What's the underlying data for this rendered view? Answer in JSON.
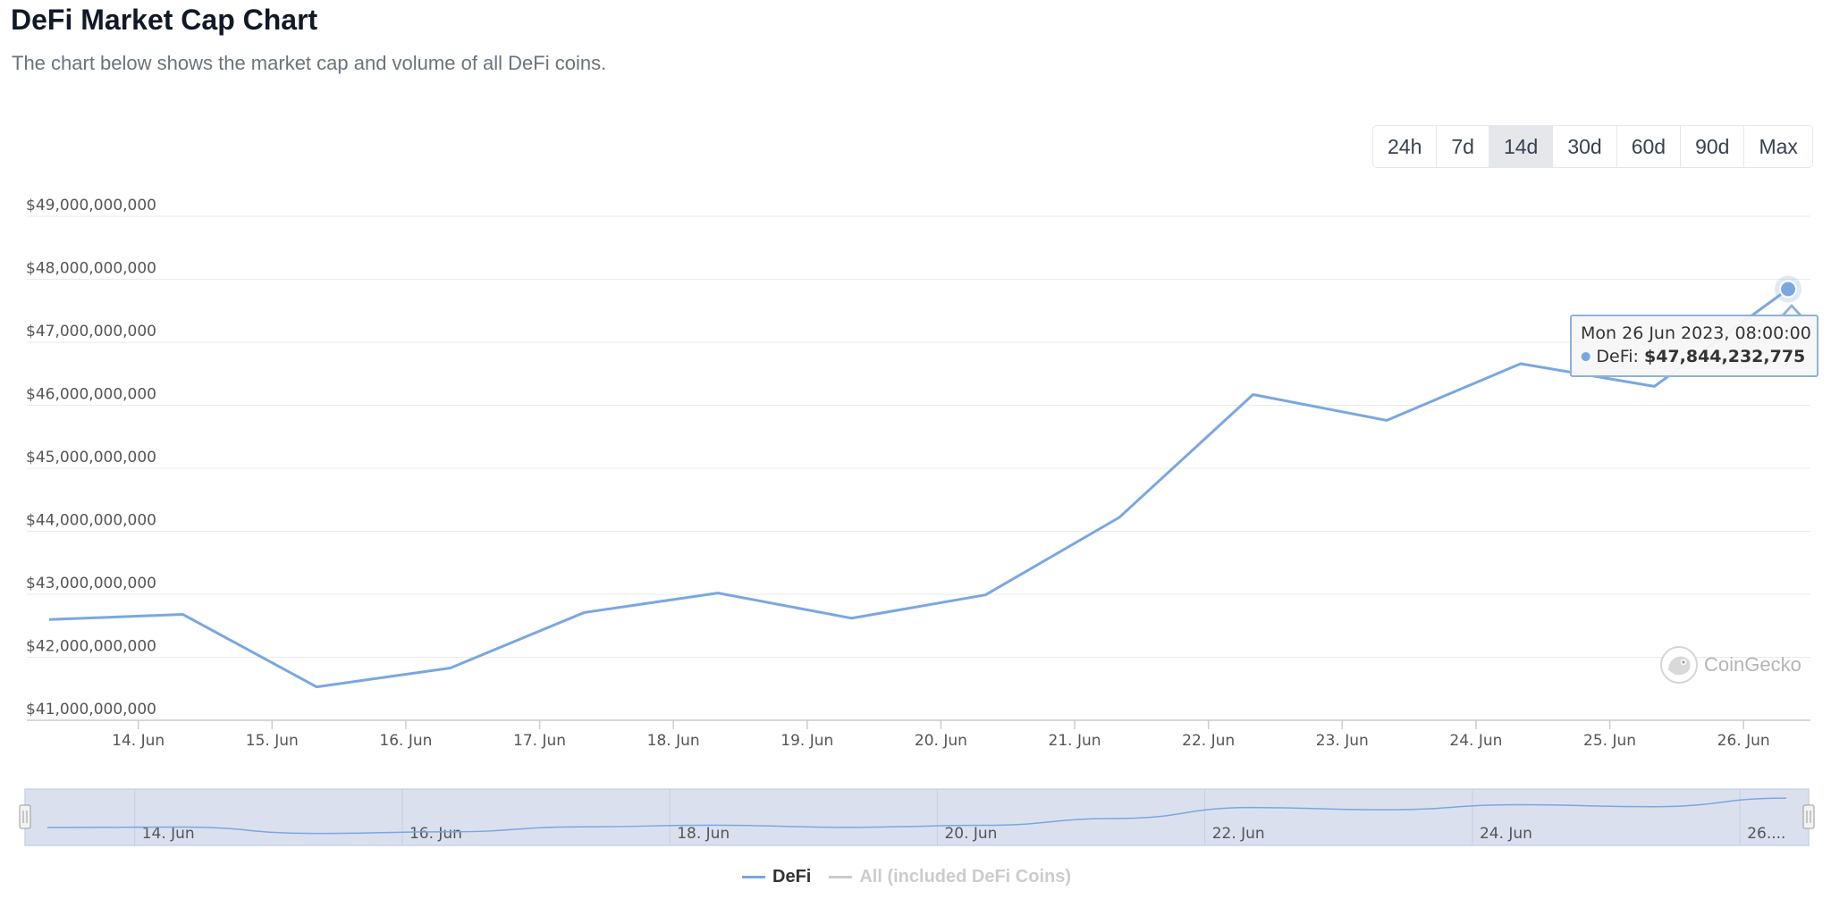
{
  "header": {
    "title": "DeFi Market Cap Chart",
    "subtitle": "The chart below shows the market cap and volume of all DeFi coins."
  },
  "range_selector": {
    "options": [
      "24h",
      "7d",
      "14d",
      "30d",
      "60d",
      "90d",
      "Max"
    ],
    "selected": "14d"
  },
  "tooltip": {
    "date": "Mon 26 Jun 2023, 08:00:00",
    "series_label": "DeFi:",
    "value": "$47,844,232,775"
  },
  "watermark": {
    "text": "CoinGecko"
  },
  "legend": {
    "items": [
      {
        "label": "DeFi",
        "color": "#7aa7e0",
        "visible": true
      },
      {
        "label": "All (included DeFi Coins)",
        "color": "#cccccc",
        "visible": false
      }
    ]
  },
  "colors": {
    "line": "#7aa7e0",
    "grid": "#ebebeb",
    "navigator_fill": "#dbe0ef",
    "navigator_border": "#c9d3ea"
  },
  "chart_data": {
    "type": "line",
    "title": "",
    "xlabel": "",
    "ylabel": "",
    "y_tick_labels": [
      "$41,000,000,000",
      "$42,000,000,000",
      "$43,000,000,000",
      "$44,000,000,000",
      "$45,000,000,000",
      "$46,000,000,000",
      "$47,000,000,000",
      "$48,000,000,000",
      "$49,000,000,000"
    ],
    "y_ticks": [
      41000000000,
      42000000000,
      43000000000,
      44000000000,
      45000000000,
      46000000000,
      47000000000,
      48000000000,
      49000000000
    ],
    "ylim": [
      41000000000,
      49000000000
    ],
    "x_tick_labels": [
      "14. Jun",
      "15. Jun",
      "16. Jun",
      "17. Jun",
      "18. Jun",
      "19. Jun",
      "20. Jun",
      "21. Jun",
      "22. Jun",
      "23. Jun",
      "24. Jun",
      "25. Jun",
      "26. Jun"
    ],
    "x_ticks": [
      "2023-06-14",
      "2023-06-15",
      "2023-06-16",
      "2023-06-17",
      "2023-06-18",
      "2023-06-19",
      "2023-06-20",
      "2023-06-21",
      "2023-06-22",
      "2023-06-23",
      "2023-06-24",
      "2023-06-25",
      "2023-06-26"
    ],
    "xlim": [
      "2023-06-13 04:00",
      "2023-06-26 12:00"
    ],
    "grid": true,
    "legend_position": "bottom",
    "series": [
      {
        "name": "DeFi",
        "x": [
          "2023-06-13 08:00",
          "2023-06-14 08:00",
          "2023-06-15 08:00",
          "2023-06-16 08:00",
          "2023-06-17 08:00",
          "2023-06-18 08:00",
          "2023-06-19 08:00",
          "2023-06-20 08:00",
          "2023-06-21 08:00",
          "2023-06-22 08:00",
          "2023-06-23 08:00",
          "2023-06-24 08:00",
          "2023-06-25 08:00",
          "2023-06-26 08:00"
        ],
        "values": [
          42600000000,
          42680000000,
          41530000000,
          41830000000,
          42710000000,
          43020000000,
          42620000000,
          42990000000,
          44220000000,
          46170000000,
          45760000000,
          46660000000,
          46300000000,
          47844232775
        ]
      }
    ],
    "navigator_x_tick_labels": [
      "14. Jun",
      "16. Jun",
      "18. Jun",
      "20. Jun",
      "22. Jun",
      "24. Jun",
      "26...."
    ],
    "navigator_x_ticks": [
      "2023-06-14",
      "2023-06-16",
      "2023-06-18",
      "2023-06-20",
      "2023-06-22",
      "2023-06-24",
      "2023-06-26"
    ]
  }
}
